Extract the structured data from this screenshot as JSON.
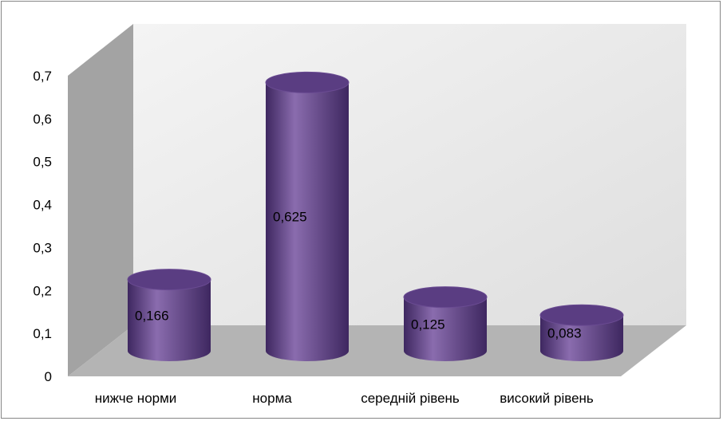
{
  "chart_data": {
    "type": "bar",
    "categories": [
      "нижче норми",
      "норма",
      "середній рівень",
      "високий рівень"
    ],
    "values": [
      0.166,
      0.625,
      0.125,
      0.083
    ],
    "value_labels": [
      "0,166",
      "0,625",
      "0,125",
      "0,083"
    ],
    "y_ticks": [
      "0",
      "0,1",
      "0,2",
      "0,3",
      "0,4",
      "0,5",
      "0,6",
      "0,7"
    ],
    "ylim": [
      0,
      0.7
    ],
    "title": "",
    "xlabel": "",
    "ylabel": "",
    "grid": false,
    "legend": "none",
    "style": "3d-cylinder",
    "colors": {
      "bar_light": "#8a6cae",
      "bar_mid": "#6a4b92",
      "bar_dark": "#3e2760",
      "bar_top": "#5a3d82",
      "back_wall": "#efefef",
      "side_wall": "#a3a3a3",
      "floor": "#b4b4b4"
    }
  }
}
